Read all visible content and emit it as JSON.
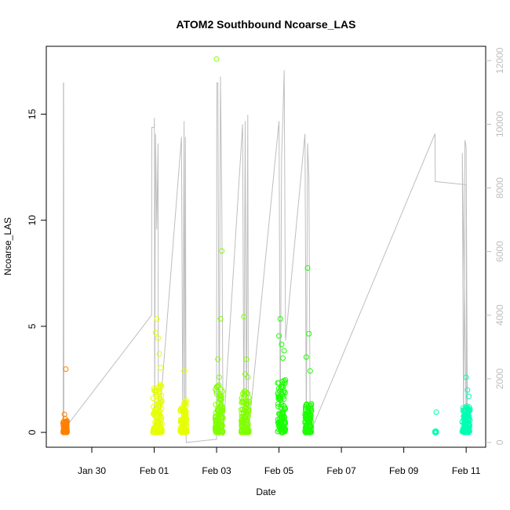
{
  "chart_data": {
    "type": "scatter",
    "title": "ATOM2 Southbound Ncoarse_LAS",
    "xlabel": "Date",
    "ylabel": "Ncoarse_LAS",
    "xlim": [
      "2017-01-28T13:00",
      "2017-02-11T15:00"
    ],
    "ylim": [
      -0.7,
      18.2
    ],
    "y2lim": [
      -150,
      12450
    ],
    "x_ticks": [
      {
        "date": "2017-01-30",
        "label": "Jan 30"
      },
      {
        "date": "2017-02-01",
        "label": "Feb 01"
      },
      {
        "date": "2017-02-03",
        "label": "Feb 03"
      },
      {
        "date": "2017-02-05",
        "label": "Feb 05"
      },
      {
        "date": "2017-02-07",
        "label": "Feb 07"
      },
      {
        "date": "2017-02-09",
        "label": "Feb 09"
      },
      {
        "date": "2017-02-11",
        "label": "Feb 11"
      }
    ],
    "y_ticks": [
      0,
      5,
      10,
      15
    ],
    "y2_ticks": [
      0,
      2000,
      4000,
      6000,
      8000,
      10000,
      12000
    ],
    "grid": false,
    "legend": "none",
    "colors": {
      "line": "#bebebe",
      "frame": "#000000"
    },
    "series": [
      {
        "type": "scatter",
        "color": "#ff8000",
        "clusters": [
          {
            "t": [
              "2017-01-29T02:00",
              "2017-01-29T05:00"
            ],
            "band": [
              0.0,
              0.55
            ],
            "outliers": [
              [
                "2017-01-29T04:00",
                2.98
              ],
              [
                "2017-01-29T03:00",
                0.85
              ],
              [
                "2017-01-29T03:30",
                0.65
              ]
            ]
          }
        ]
      },
      {
        "type": "scatter",
        "color": "#e6ff00",
        "clusters": [
          {
            "t": [
              "2017-01-31T23:00",
              "2017-02-01T06:00"
            ],
            "band": [
              0.0,
              2.3
            ],
            "outliers": [
              [
                "2017-02-01T02:00",
                5.35
              ],
              [
                "2017-02-01T01:00",
                4.7
              ],
              [
                "2017-02-01T03:00",
                4.45
              ],
              [
                "2017-02-01T04:00",
                3.7
              ],
              [
                "2017-02-01T05:00",
                3.05
              ]
            ]
          },
          {
            "t": [
              "2017-02-01T20:00",
              "2017-02-02T01:00"
            ],
            "band": [
              0.0,
              1.5
            ],
            "outliers": [
              [
                "2017-02-01T23:00",
                2.9
              ]
            ]
          }
        ]
      },
      {
        "type": "scatter",
        "color": "#80ff00",
        "clusters": [
          {
            "t": [
              "2017-02-02T23:00",
              "2017-02-03T05:00"
            ],
            "band": [
              0.0,
              2.3
            ],
            "outliers": [
              [
                "2017-02-03T00:00",
                17.6
              ],
              [
                "2017-02-03T04:00",
                8.55
              ],
              [
                "2017-02-03T03:00",
                5.35
              ],
              [
                "2017-02-03T01:00",
                3.45
              ],
              [
                "2017-02-03T02:00",
                2.6
              ]
            ]
          },
          {
            "t": [
              "2017-02-03T19:00",
              "2017-02-04T01:00"
            ],
            "band": [
              0.0,
              2.0
            ],
            "outliers": [
              [
                "2017-02-03T21:00",
                5.45
              ],
              [
                "2017-02-03T23:00",
                3.45
              ],
              [
                "2017-02-03T22:00",
                2.75
              ],
              [
                "2017-02-04T00:00",
                2.6
              ]
            ]
          }
        ]
      },
      {
        "type": "scatter",
        "color": "#1aff00",
        "clusters": [
          {
            "t": [
              "2017-02-04T23:00",
              "2017-02-05T05:00"
            ],
            "band": [
              0.0,
              2.5
            ],
            "outliers": [
              [
                "2017-02-05T01:00",
                5.35
              ],
              [
                "2017-02-05T00:00",
                4.55
              ],
              [
                "2017-02-05T02:00",
                4.15
              ],
              [
                "2017-02-05T04:00",
                3.85
              ],
              [
                "2017-02-05T03:00",
                3.5
              ]
            ]
          },
          {
            "t": [
              "2017-02-05T20:00",
              "2017-02-06T01:00"
            ],
            "band": [
              0.0,
              1.4
            ],
            "outliers": [
              [
                "2017-02-05T22:00",
                7.75
              ],
              [
                "2017-02-05T23:00",
                4.65
              ],
              [
                "2017-02-05T21:00",
                3.55
              ],
              [
                "2017-02-06T00:00",
                2.9
              ]
            ]
          }
        ]
      },
      {
        "type": "scatter",
        "color": "#00ffb3",
        "clusters": [
          {
            "t": [
              "2017-02-10T00:00",
              "2017-02-10T01:00"
            ],
            "band": [
              0.0,
              0.05
            ],
            "outliers": [
              [
                "2017-02-10T01:00",
                0.95
              ]
            ]
          },
          {
            "t": [
              "2017-02-10T21:00",
              "2017-02-11T03:00"
            ],
            "band": [
              0.0,
              1.3
            ],
            "outliers": [
              [
                "2017-02-11T00:00",
                2.6
              ],
              [
                "2017-02-11T01:00",
                2.0
              ],
              [
                "2017-02-11T02:00",
                1.7
              ]
            ]
          }
        ]
      },
      {
        "type": "line",
        "axis": "right",
        "color": "#bebebe",
        "name": "",
        "points": [
          [
            "2017-01-29T02:00",
            400
          ],
          [
            "2017-01-29T02:10",
            11300
          ],
          [
            "2017-01-29T02:20",
            11300
          ],
          [
            "2017-01-29T02:30",
            400
          ],
          [
            "2017-01-31T22:00",
            4000
          ],
          [
            "2017-01-31T22:10",
            9900
          ],
          [
            "2017-02-01T00:00",
            9900
          ],
          [
            "2017-02-01T00:10",
            10200
          ],
          [
            "2017-02-01T00:20",
            300
          ],
          [
            "2017-02-01T01:00",
            9700
          ],
          [
            "2017-02-01T02:00",
            6700
          ],
          [
            "2017-02-01T03:00",
            9400
          ],
          [
            "2017-02-01T03:10",
            300
          ],
          [
            "2017-02-01T21:00",
            9600
          ],
          [
            "2017-02-01T22:00",
            300
          ],
          [
            "2017-02-01T23:00",
            10100
          ],
          [
            "2017-02-01T23:30",
            300
          ],
          [
            "2017-02-02T00:00",
            9600
          ],
          [
            "2017-02-02T00:30",
            200
          ],
          [
            "2017-02-02T00:40",
            0
          ],
          [
            "2017-02-03T00:00",
            100
          ],
          [
            "2017-02-03T00:10",
            11300
          ],
          [
            "2017-02-03T01:00",
            11300
          ],
          [
            "2017-02-03T02:00",
            200
          ],
          [
            "2017-02-03T03:00",
            11500
          ],
          [
            "2017-02-03T04:00",
            7400
          ],
          [
            "2017-02-03T05:00",
            200
          ],
          [
            "2017-02-03T20:00",
            10000
          ],
          [
            "2017-02-03T21:00",
            300
          ],
          [
            "2017-02-03T22:00",
            10100
          ],
          [
            "2017-02-03T23:00",
            300
          ],
          [
            "2017-02-04T00:00",
            10300
          ],
          [
            "2017-02-04T00:30",
            300
          ],
          [
            "2017-02-05T00:00",
            10100
          ],
          [
            "2017-02-05T01:00",
            300
          ],
          [
            "2017-02-05T02:00",
            9000
          ],
          [
            "2017-02-05T03:00",
            10200
          ],
          [
            "2017-02-05T04:00",
            11700
          ],
          [
            "2017-02-05T05:00",
            3200
          ],
          [
            "2017-02-05T20:00",
            9700
          ],
          [
            "2017-02-05T21:00",
            300
          ],
          [
            "2017-02-05T22:00",
            9400
          ],
          [
            "2017-02-05T23:00",
            8300
          ],
          [
            "2017-02-06T00:00",
            300
          ],
          [
            "2017-02-10T00:00",
            9700
          ],
          [
            "2017-02-10T00:10",
            8200
          ],
          [
            "2017-02-11T00:00",
            8100
          ],
          [
            "2017-02-11T00:10",
            300
          ],
          [
            "2017-02-10T21:00",
            9100
          ],
          [
            "2017-02-10T22:00",
            300
          ],
          [
            "2017-02-10T23:00",
            9500
          ],
          [
            "2017-02-11T00:00",
            9300
          ],
          [
            "2017-02-11T01:00",
            300
          ]
        ]
      }
    ]
  }
}
